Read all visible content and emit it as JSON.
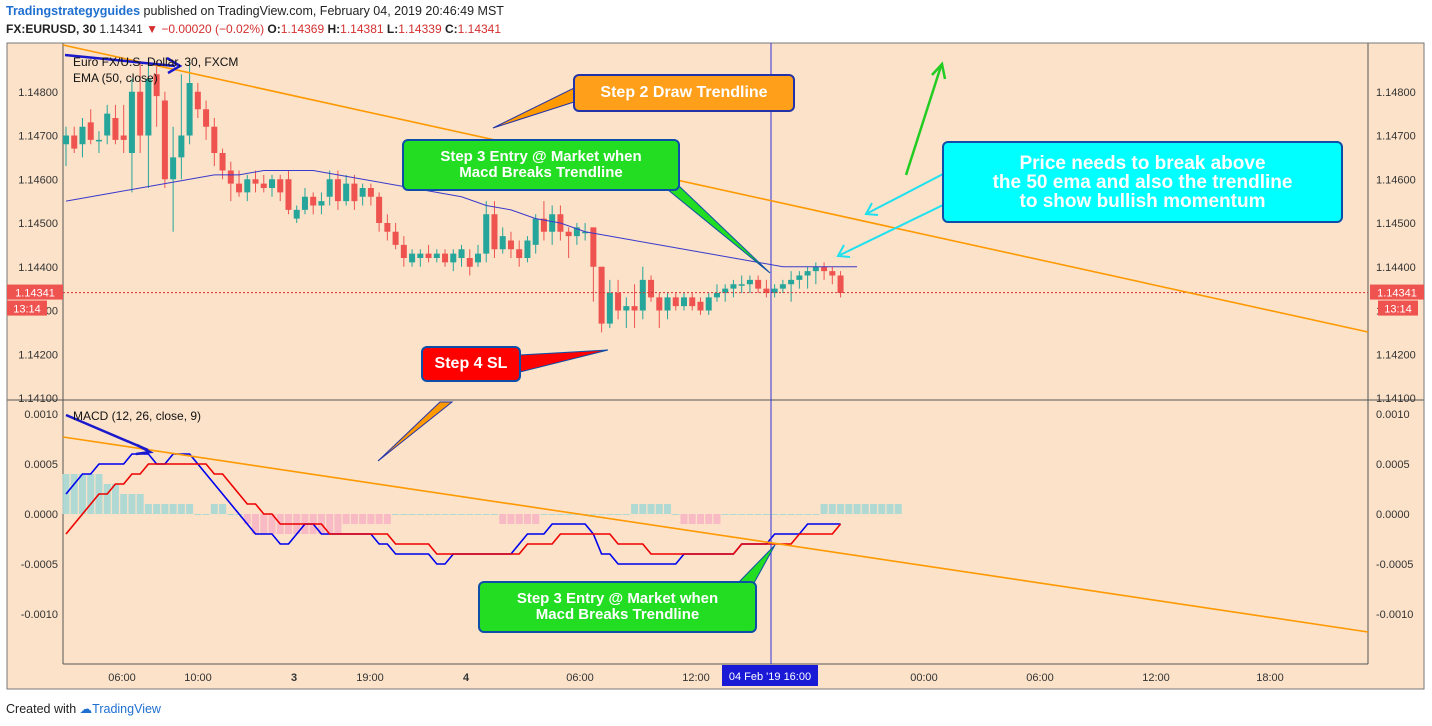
{
  "header": {
    "brand": "Tradingstrategyguides",
    "published": " published on TradingView.com, February 04, 2019 20:46:49 MST",
    "symbol": "FX:EURUSD, 30",
    "last": "1.14341",
    "change": "▼ −0.00020 (−0.02%)",
    "o_label": "O:",
    "o": "1.14369",
    "h_label": "H:",
    "h": "1.14381",
    "l_label": "L:",
    "l": "1.14339",
    "c_label": "C:",
    "c": "1.14341"
  },
  "footer": {
    "created": "Created with",
    "tv": "TradingView"
  },
  "colors": {
    "background": "#fbe2c9",
    "up": "#26a69a",
    "down": "#ef5350",
    "ema": "#3a3acc",
    "trendline": "#ff9900",
    "macd": "#0000ee",
    "signal": "#ee0000",
    "crosshair": "#3333dd",
    "arrow_blue": "#1a1acc",
    "arrow_cyan": "#1fe0ee",
    "arrow_green": "#22cc22"
  },
  "chart_data": [
    {
      "type": "candlestick",
      "title": "Euro FX/U.S. Dollar, 30, FXCM",
      "indicator": "EMA (50, close)",
      "ylim": [
        1.141,
        1.149
      ],
      "yticks": [
        "1.14800",
        "1.14700",
        "1.14600",
        "1.14500",
        "1.14400",
        "1.14300",
        "1.14200",
        "1.14100"
      ],
      "last_price": "1.14341",
      "countdown": "13:14",
      "candles": [
        {
          "o": 1.1468,
          "h": 1.1472,
          "l": 1.1463,
          "c": 1.147
        },
        {
          "o": 1.147,
          "h": 1.1472,
          "l": 1.1466,
          "c": 1.1467
        },
        {
          "o": 1.1468,
          "h": 1.1474,
          "l": 1.1465,
          "c": 1.1472
        },
        {
          "o": 1.1473,
          "h": 1.1476,
          "l": 1.1468,
          "c": 1.1469
        },
        {
          "o": 1.1469,
          "h": 1.1471,
          "l": 1.1466,
          "c": 1.1469
        },
        {
          "o": 1.147,
          "h": 1.1477,
          "l": 1.1468,
          "c": 1.1475
        },
        {
          "o": 1.1474,
          "h": 1.1477,
          "l": 1.1468,
          "c": 1.1469
        },
        {
          "o": 1.147,
          "h": 1.1477,
          "l": 1.1466,
          "c": 1.1469
        },
        {
          "o": 1.1466,
          "h": 1.1483,
          "l": 1.1457,
          "c": 1.148
        },
        {
          "o": 1.148,
          "h": 1.1487,
          "l": 1.1466,
          "c": 1.147
        },
        {
          "o": 1.147,
          "h": 1.1486,
          "l": 1.1458,
          "c": 1.1483
        },
        {
          "o": 1.1484,
          "h": 1.1487,
          "l": 1.1472,
          "c": 1.1479
        },
        {
          "o": 1.1478,
          "h": 1.148,
          "l": 1.1458,
          "c": 1.146
        },
        {
          "o": 1.146,
          "h": 1.1472,
          "l": 1.1448,
          "c": 1.1465
        },
        {
          "o": 1.1465,
          "h": 1.1484,
          "l": 1.146,
          "c": 1.147
        },
        {
          "o": 1.147,
          "h": 1.1487,
          "l": 1.1468,
          "c": 1.1482
        },
        {
          "o": 1.148,
          "h": 1.1482,
          "l": 1.1474,
          "c": 1.1476
        },
        {
          "o": 1.1476,
          "h": 1.1478,
          "l": 1.1469,
          "c": 1.1472
        },
        {
          "o": 1.1472,
          "h": 1.1474,
          "l": 1.1463,
          "c": 1.1466
        },
        {
          "o": 1.1466,
          "h": 1.1467,
          "l": 1.146,
          "c": 1.1462
        },
        {
          "o": 1.1462,
          "h": 1.1464,
          "l": 1.1455,
          "c": 1.1459
        },
        {
          "o": 1.1459,
          "h": 1.1462,
          "l": 1.1456,
          "c": 1.1457
        },
        {
          "o": 1.1457,
          "h": 1.1461,
          "l": 1.1455,
          "c": 1.146
        },
        {
          "o": 1.146,
          "h": 1.1462,
          "l": 1.1457,
          "c": 1.1459
        },
        {
          "o": 1.1459,
          "h": 1.1461,
          "l": 1.1457,
          "c": 1.1458
        },
        {
          "o": 1.1458,
          "h": 1.1461,
          "l": 1.1456,
          "c": 1.146
        },
        {
          "o": 1.146,
          "h": 1.1461,
          "l": 1.1455,
          "c": 1.1457
        },
        {
          "o": 1.146,
          "h": 1.1462,
          "l": 1.1452,
          "c": 1.1453
        },
        {
          "o": 1.1451,
          "h": 1.1454,
          "l": 1.145,
          "c": 1.1453
        },
        {
          "o": 1.1453,
          "h": 1.1458,
          "l": 1.1452,
          "c": 1.1456
        },
        {
          "o": 1.1456,
          "h": 1.1457,
          "l": 1.1452,
          "c": 1.1454
        },
        {
          "o": 1.1454,
          "h": 1.1457,
          "l": 1.1452,
          "c": 1.1455
        },
        {
          "o": 1.1456,
          "h": 1.1462,
          "l": 1.1454,
          "c": 1.146
        },
        {
          "o": 1.146,
          "h": 1.1462,
          "l": 1.1453,
          "c": 1.1455
        },
        {
          "o": 1.1455,
          "h": 1.1461,
          "l": 1.1454,
          "c": 1.1459
        },
        {
          "o": 1.1459,
          "h": 1.1461,
          "l": 1.1453,
          "c": 1.1455
        },
        {
          "o": 1.1456,
          "h": 1.1459,
          "l": 1.1454,
          "c": 1.1458
        },
        {
          "o": 1.1458,
          "h": 1.1459,
          "l": 1.1454,
          "c": 1.1456
        },
        {
          "o": 1.1456,
          "h": 1.1457,
          "l": 1.1448,
          "c": 1.145
        },
        {
          "o": 1.145,
          "h": 1.1452,
          "l": 1.1446,
          "c": 1.1448
        },
        {
          "o": 1.1448,
          "h": 1.145,
          "l": 1.1444,
          "c": 1.1445
        },
        {
          "o": 1.1445,
          "h": 1.1447,
          "l": 1.144,
          "c": 1.1442
        },
        {
          "o": 1.1441,
          "h": 1.1444,
          "l": 1.144,
          "c": 1.1443
        },
        {
          "o": 1.1442,
          "h": 1.1444,
          "l": 1.144,
          "c": 1.1443
        },
        {
          "o": 1.1443,
          "h": 1.1445,
          "l": 1.1441,
          "c": 1.1442
        },
        {
          "o": 1.1442,
          "h": 1.1444,
          "l": 1.1441,
          "c": 1.1443
        },
        {
          "o": 1.1443,
          "h": 1.1444,
          "l": 1.144,
          "c": 1.1441
        },
        {
          "o": 1.1441,
          "h": 1.1444,
          "l": 1.1439,
          "c": 1.1443
        },
        {
          "o": 1.1442,
          "h": 1.1445,
          "l": 1.144,
          "c": 1.1444
        },
        {
          "o": 1.1442,
          "h": 1.1444,
          "l": 1.1438,
          "c": 1.144
        },
        {
          "o": 1.1441,
          "h": 1.1445,
          "l": 1.144,
          "c": 1.1443
        },
        {
          "o": 1.1443,
          "h": 1.1455,
          "l": 1.1441,
          "c": 1.1452
        },
        {
          "o": 1.1452,
          "h": 1.1455,
          "l": 1.1442,
          "c": 1.1444
        },
        {
          "o": 1.1444,
          "h": 1.1449,
          "l": 1.1443,
          "c": 1.1447
        },
        {
          "o": 1.1446,
          "h": 1.1448,
          "l": 1.1442,
          "c": 1.1444
        },
        {
          "o": 1.1444,
          "h": 1.1446,
          "l": 1.144,
          "c": 1.1442
        },
        {
          "o": 1.1442,
          "h": 1.1447,
          "l": 1.1441,
          "c": 1.1446
        },
        {
          "o": 1.1445,
          "h": 1.1452,
          "l": 1.1443,
          "c": 1.1451
        },
        {
          "o": 1.1451,
          "h": 1.1455,
          "l": 1.1446,
          "c": 1.1448
        },
        {
          "o": 1.1448,
          "h": 1.1454,
          "l": 1.1445,
          "c": 1.1452
        },
        {
          "o": 1.1452,
          "h": 1.1454,
          "l": 1.1446,
          "c": 1.1448
        },
        {
          "o": 1.1448,
          "h": 1.1449,
          "l": 1.1442,
          "c": 1.1447
        },
        {
          "o": 1.1447,
          "h": 1.145,
          "l": 1.1445,
          "c": 1.1449
        },
        {
          "o": 1.1448,
          "h": 1.145,
          "l": 1.1446,
          "c": 1.1448
        },
        {
          "o": 1.1449,
          "h": 1.1449,
          "l": 1.1432,
          "c": 1.144
        },
        {
          "o": 1.144,
          "h": 1.144,
          "l": 1.1425,
          "c": 1.1427
        },
        {
          "o": 1.1427,
          "h": 1.1437,
          "l": 1.1426,
          "c": 1.1434
        },
        {
          "o": 1.1434,
          "h": 1.1437,
          "l": 1.1428,
          "c": 1.143
        },
        {
          "o": 1.143,
          "h": 1.1433,
          "l": 1.1426,
          "c": 1.1431
        },
        {
          "o": 1.1431,
          "h": 1.1436,
          "l": 1.1426,
          "c": 1.143
        },
        {
          "o": 1.143,
          "h": 1.144,
          "l": 1.1428,
          "c": 1.1437
        },
        {
          "o": 1.1437,
          "h": 1.1438,
          "l": 1.1432,
          "c": 1.1433
        },
        {
          "o": 1.1433,
          "h": 1.1434,
          "l": 1.1426,
          "c": 1.143
        },
        {
          "o": 1.143,
          "h": 1.1434,
          "l": 1.1428,
          "c": 1.1433
        },
        {
          "o": 1.1433,
          "h": 1.1434,
          "l": 1.143,
          "c": 1.1431
        },
        {
          "o": 1.1431,
          "h": 1.1434,
          "l": 1.143,
          "c": 1.1433
        },
        {
          "o": 1.1433,
          "h": 1.1434,
          "l": 1.143,
          "c": 1.1431
        },
        {
          "o": 1.1432,
          "h": 1.1433,
          "l": 1.1429,
          "c": 1.143
        },
        {
          "o": 1.143,
          "h": 1.1434,
          "l": 1.1429,
          "c": 1.1433
        },
        {
          "o": 1.1433,
          "h": 1.1436,
          "l": 1.1432,
          "c": 1.1434
        },
        {
          "o": 1.1434,
          "h": 1.1436,
          "l": 1.1432,
          "c": 1.1435
        },
        {
          "o": 1.1435,
          "h": 1.1437,
          "l": 1.1433,
          "c": 1.1436
        },
        {
          "o": 1.1436,
          "h": 1.1438,
          "l": 1.1434,
          "c": 1.1436
        },
        {
          "o": 1.1436,
          "h": 1.1438,
          "l": 1.1434,
          "c": 1.1437
        },
        {
          "o": 1.1437,
          "h": 1.1438,
          "l": 1.1434,
          "c": 1.1435
        },
        {
          "o": 1.1435,
          "h": 1.1437,
          "l": 1.1433,
          "c": 1.1434
        },
        {
          "o": 1.1434,
          "h": 1.1436,
          "l": 1.1433,
          "c": 1.1435
        },
        {
          "o": 1.1435,
          "h": 1.1437,
          "l": 1.1434,
          "c": 1.1436
        },
        {
          "o": 1.1436,
          "h": 1.1439,
          "l": 1.1432,
          "c": 1.1437
        },
        {
          "o": 1.1437,
          "h": 1.1439,
          "l": 1.1435,
          "c": 1.1438
        },
        {
          "o": 1.1438,
          "h": 1.144,
          "l": 1.1435,
          "c": 1.1439
        },
        {
          "o": 1.1439,
          "h": 1.1441,
          "l": 1.1436,
          "c": 1.144
        },
        {
          "o": 1.144,
          "h": 1.1441,
          "l": 1.1437,
          "c": 1.1439
        },
        {
          "o": 1.1439,
          "h": 1.144,
          "l": 1.1436,
          "c": 1.1438
        },
        {
          "o": 1.1438,
          "h": 1.1439,
          "l": 1.1433,
          "c": 1.1434
        }
      ],
      "ema": [
        1.1455,
        1.1456,
        1.1457,
        1.1458,
        1.1459,
        1.146,
        1.1461,
        1.1461,
        1.1462,
        1.1462,
        1.1462,
        1.1461,
        1.146,
        1.1459,
        1.1458,
        1.1457,
        1.1456,
        1.1454,
        1.1453,
        1.1451,
        1.145,
        1.1448,
        1.1447,
        1.1446,
        1.1445,
        1.1444,
        1.1443,
        1.1442,
        1.1441,
        1.144,
        1.144,
        1.144,
        1.144,
        1.144,
        1.144
      ],
      "ema_x": [
        0,
        3,
        6,
        9,
        12,
        15,
        18,
        21,
        24,
        27,
        30,
        33,
        36,
        39,
        42,
        45,
        48,
        51,
        54,
        57,
        60,
        63,
        66,
        69,
        72,
        75,
        78,
        81,
        84,
        87,
        90,
        92,
        94,
        95,
        96
      ]
    },
    {
      "type": "line",
      "title": "MACD (12, 26, close, 9)",
      "ylim": [
        -0.00148,
        0.00112
      ],
      "yticks": [
        "0.0010",
        "0.0005",
        "0.0000",
        "-0.0005",
        "-0.0010"
      ],
      "series": [
        {
          "name": "MACD",
          "values": [
            0.0002,
            0.0003,
            0.0004,
            0.0004,
            0.0005,
            0.0005,
            0.0005,
            0.0005,
            0.0006,
            0.0006,
            0.0006,
            0.0005,
            0.0005,
            0.0006,
            0.0006,
            0.0006,
            0.0005,
            0.0004,
            0.0003,
            0.0002,
            0.0001,
            -0.0,
            -0.0001,
            -0.0002,
            -0.0002,
            -0.0002,
            -0.0003,
            -0.0003,
            -0.0002,
            -0.0001,
            -0.0001,
            -0.0002,
            -0.0002,
            -0.0002,
            -0.0002,
            -0.0002,
            -0.0002,
            -0.0002,
            -0.0003,
            -0.0003,
            -0.0004,
            -0.0004,
            -0.0004,
            -0.0004,
            -0.0004,
            -0.0005,
            -0.0005,
            -0.0004,
            -0.0004,
            -0.0004,
            -0.0004,
            -0.0004,
            -0.0004,
            -0.0004,
            -0.0004,
            -0.0003,
            -0.0002,
            -0.0002,
            -0.0002,
            -0.0001,
            -0.0001,
            -0.0001,
            -0.0001,
            -0.0001,
            -0.0002,
            -0.0004,
            -0.0004,
            -0.0005,
            -0.0005,
            -0.0005,
            -0.0005,
            -0.0005,
            -0.0005,
            -0.0005,
            -0.0005,
            -0.0004,
            -0.0004,
            -0.0004,
            -0.0004,
            -0.0004,
            -0.0004,
            -0.0004,
            -0.0003,
            -0.0003,
            -0.0003,
            -0.0003,
            -0.0002,
            -0.0002,
            -0.0002,
            -0.0002,
            -0.0001,
            -0.0001,
            -0.0001,
            -0.0001,
            -0.0001
          ]
        },
        {
          "name": "Signal",
          "values": [
            -0.0002,
            -0.0001,
            0.0,
            0.0001,
            0.0002,
            0.0002,
            0.0003,
            0.0003,
            0.0004,
            0.0004,
            0.0005,
            0.0005,
            0.0005,
            0.0005,
            0.0005,
            0.0005,
            0.0005,
            0.0005,
            0.0004,
            0.0004,
            0.0003,
            0.0002,
            0.0001,
            0.0001,
            0.0,
            -0.0,
            -0.0001,
            -0.0001,
            -0.0001,
            -0.0001,
            -0.0001,
            -0.0001,
            -0.0002,
            -0.0002,
            -0.0002,
            -0.0002,
            -0.0002,
            -0.0002,
            -0.0002,
            -0.0002,
            -0.0003,
            -0.0003,
            -0.0003,
            -0.0003,
            -0.0003,
            -0.0004,
            -0.0004,
            -0.0004,
            -0.0004,
            -0.0004,
            -0.0004,
            -0.0004,
            -0.0004,
            -0.0004,
            -0.0004,
            -0.0004,
            -0.0003,
            -0.0003,
            -0.0003,
            -0.0003,
            -0.0002,
            -0.0002,
            -0.0002,
            -0.0002,
            -0.0002,
            -0.0002,
            -0.0002,
            -0.0003,
            -0.0003,
            -0.0003,
            -0.0003,
            -0.0004,
            -0.0004,
            -0.0004,
            -0.0004,
            -0.0004,
            -0.0004,
            -0.0004,
            -0.0004,
            -0.0004,
            -0.0004,
            -0.0004,
            -0.0003,
            -0.0003,
            -0.0003,
            -0.0003,
            -0.0003,
            -0.0003,
            -0.0003,
            -0.0002,
            -0.0002,
            -0.0002,
            -0.0002,
            -0.0002,
            -0.0001
          ]
        }
      ],
      "histogram": [
        0.0004,
        0.0004,
        0.0004,
        0.0004,
        0.0004,
        0.0003,
        0.0003,
        0.0002,
        0.0002,
        0.0002,
        0.0001,
        0.0001,
        0.0001,
        0.0001,
        0.0001,
        0.0001,
        0.0,
        0.0,
        0.0001,
        0.0001,
        0.0,
        -0.0,
        -0.0001,
        -0.0002,
        -0.0002,
        -0.0002,
        -0.0002,
        -0.0002,
        -0.0002,
        -0.0002,
        -0.0002,
        -0.0002,
        -0.0002,
        -0.0002,
        -0.0001,
        -0.0001,
        -0.0001,
        -0.0001,
        -0.0001,
        -0.0001,
        -0.0,
        -0.0,
        -0.0,
        -0.0,
        -0.0,
        -0.0,
        -0.0,
        -0.0,
        -0.0,
        -0.0,
        -0.0,
        -0.0,
        -0.0,
        -0.0001,
        -0.0001,
        -0.0001,
        -0.0001,
        -0.0001,
        -0.0,
        -0.0,
        -0.0,
        -0.0,
        -0.0,
        0.0,
        0.0,
        0.0,
        0.0,
        0.0,
        0.0,
        0.0001,
        0.0001,
        0.0001,
        0.0001,
        0.0001,
        -0.0,
        -0.0001,
        -0.0001,
        -0.0001,
        -0.0001,
        -0.0001,
        -0.0,
        -0.0,
        -0.0,
        -0.0,
        -0.0,
        -0.0,
        -0.0,
        -0.0,
        -0.0,
        0.0,
        0.0,
        0.0,
        0.0001,
        0.0001,
        0.0001,
        0.0001,
        0.0001,
        0.0001,
        0.0001,
        0.0001,
        0.0001,
        0.0001
      ]
    }
  ],
  "time_axis": {
    "labels": [
      "06:00",
      "10:00",
      "3",
      "19:00",
      "4",
      "06:00",
      "12:00",
      "00:00",
      "06:00",
      "12:00",
      "18:00"
    ],
    "bold": [
      false,
      false,
      true,
      false,
      true,
      false,
      false,
      false,
      false,
      false,
      false
    ],
    "cursor_label": "04 Feb '19   16:00"
  },
  "annotations": {
    "step2": "Step 2 Draw Trendline",
    "step3_top": "Step 3 Entry @ Market when\nMacd Breaks Trendline",
    "step4": "Step 4 SL",
    "price_note": "Price needs to break above\nthe 50 ema and also the trendline\nto show bullish momentum",
    "step3_bottom": "Step 3 Entry @ Market when\nMacd Breaks Trendline"
  }
}
